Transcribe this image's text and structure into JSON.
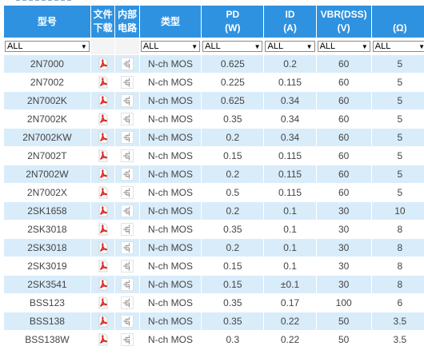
{
  "headers": {
    "model": "型号",
    "download_line1": "文件",
    "download_line2": "下载",
    "circuit_line1": "内部",
    "circuit_line2": "电路",
    "type": "类型",
    "pd": "PD",
    "pd_unit": "(W)",
    "id": "ID",
    "id_unit": "(A)",
    "vbr": "VBR(DSS)",
    "vbr_unit": "(V)",
    "r_unit": "(Ω)"
  },
  "filters": {
    "model": "ALL",
    "type": "ALL",
    "pd": "ALL",
    "id": "ALL",
    "vbr": "ALL",
    "r": "ALL"
  },
  "colors": {
    "header_bg": "#2f92e0",
    "row_alt": "#d9ecfa",
    "pdf_red": "#d7261e"
  },
  "icons": {
    "download": "pdf-icon",
    "circuit": "mosfet-circuit-icon"
  },
  "rows": [
    {
      "model": "2N7000",
      "type": "N-ch MOS",
      "pd": "0.625",
      "id": "0.2",
      "vbr": "60",
      "r": "5"
    },
    {
      "model": "2N7002",
      "type": "N-ch MOS",
      "pd": "0.225",
      "id": "0.115",
      "vbr": "60",
      "r": "5"
    },
    {
      "model": "2N7002K",
      "type": "N-ch MOS",
      "pd": "0.625",
      "id": "0.34",
      "vbr": "60",
      "r": "5"
    },
    {
      "model": "2N7002K",
      "type": "N-ch MOS",
      "pd": "0.35",
      "id": "0.34",
      "vbr": "60",
      "r": "5"
    },
    {
      "model": "2N7002KW",
      "type": "N-ch MOS",
      "pd": "0.2",
      "id": "0.34",
      "vbr": "60",
      "r": "5"
    },
    {
      "model": "2N7002T",
      "type": "N-ch MOS",
      "pd": "0.15",
      "id": "0.115",
      "vbr": "60",
      "r": "5"
    },
    {
      "model": "2N7002W",
      "type": "N-ch MOS",
      "pd": "0.2",
      "id": "0.115",
      "vbr": "60",
      "r": "5"
    },
    {
      "model": "2N7002X",
      "type": "N-ch MOS",
      "pd": "0.5",
      "id": "0.115",
      "vbr": "60",
      "r": "5"
    },
    {
      "model": "2SK1658",
      "type": "N-ch MOS",
      "pd": "0.2",
      "id": "0.1",
      "vbr": "30",
      "r": "10"
    },
    {
      "model": "2SK3018",
      "type": "N-ch MOS",
      "pd": "0.35",
      "id": "0.1",
      "vbr": "30",
      "r": "8"
    },
    {
      "model": "2SK3018",
      "type": "N-ch MOS",
      "pd": "0.2",
      "id": "0.1",
      "vbr": "30",
      "r": "8"
    },
    {
      "model": "2SK3019",
      "type": "N-ch MOS",
      "pd": "0.15",
      "id": "0.1",
      "vbr": "30",
      "r": "8"
    },
    {
      "model": "2SK3541",
      "type": "N-ch MOS",
      "pd": "0.15",
      "id": "±0.1",
      "vbr": "30",
      "r": "8"
    },
    {
      "model": "BSS123",
      "type": "N-ch MOS",
      "pd": "0.35",
      "id": "0.17",
      "vbr": "100",
      "r": "6"
    },
    {
      "model": "BSS138",
      "type": "N-ch MOS",
      "pd": "0.35",
      "id": "0.22",
      "vbr": "50",
      "r": "3.5"
    },
    {
      "model": "BSS138W",
      "type": "N-ch MOS",
      "pd": "0.3",
      "id": "0.22",
      "vbr": "50",
      "r": "3.5"
    }
  ]
}
